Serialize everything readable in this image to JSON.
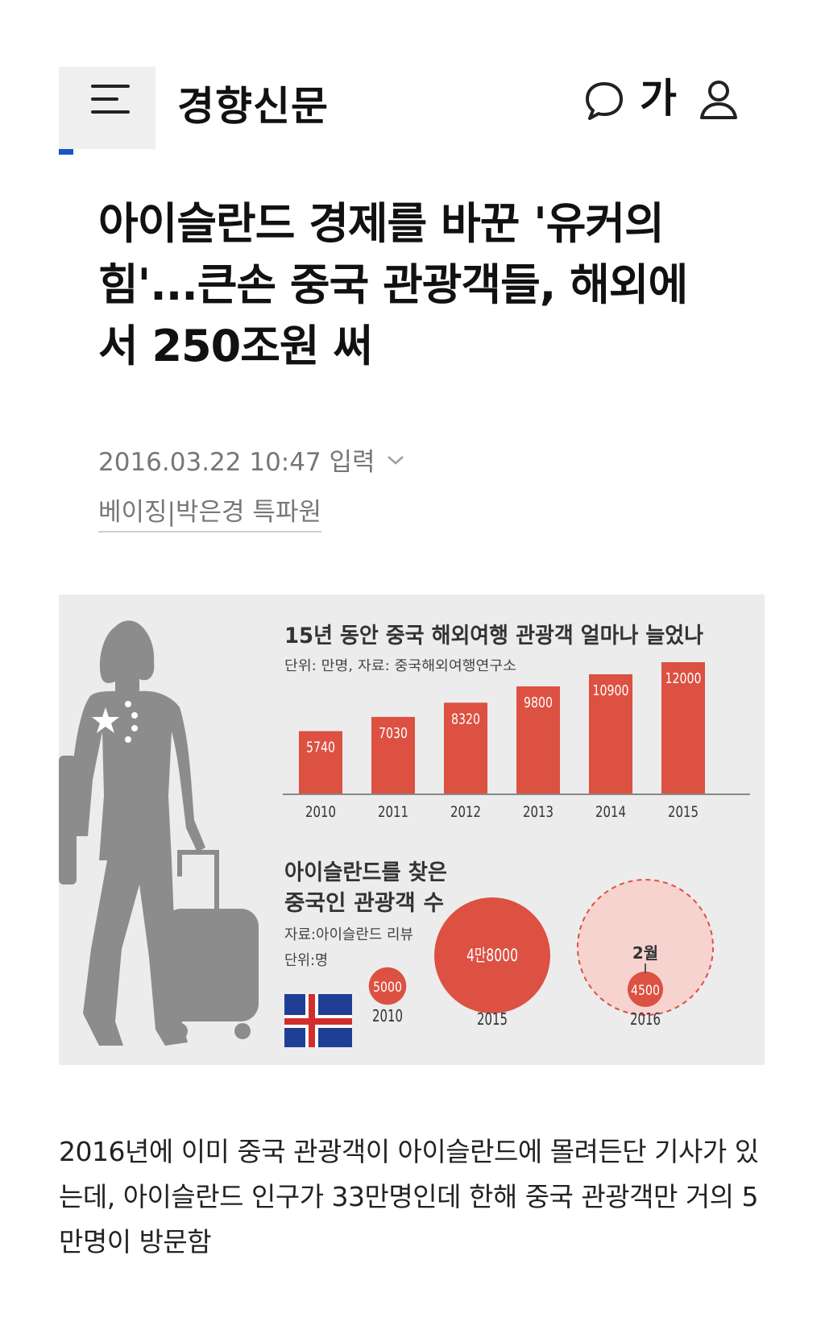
{
  "header": {
    "logo": "경향신문",
    "font_button": "가",
    "icons": [
      "menu-icon",
      "comment-icon",
      "user-icon"
    ]
  },
  "article": {
    "headline": "아이슬란드 경제를 바꾼 '유커의 힘'...큰손 중국 관광객들, 해외에서 250조원 써",
    "date": "2016.03.22 10:47 입력",
    "byline": "베이징|박은경 특파원"
  },
  "infographic": {
    "chart1_title": "15년 동안 중국 해외여행 관광객 얼마나 늘었나",
    "chart1_source": "단위: 만명, 자료: 중국해외여행연구소",
    "chart2_title_line1": "아이슬란드를 찾은",
    "chart2_title_line2": "중국인 관광객 수",
    "chart2_source": "자료:아이슬란드 리뷰",
    "chart2_unit": "단위:명",
    "bubble_2015_label": "4만8000",
    "bubble_2016_month": "2월"
  },
  "chart_data": [
    {
      "type": "bar",
      "title": "15년 동안 중국 해외여행 관광객 얼마나 늘었나",
      "subtitle": "단위: 만명, 자료: 중국해외여행연구소",
      "categories": [
        "2010",
        "2011",
        "2012",
        "2013",
        "2014",
        "2015"
      ],
      "values": [
        5740,
        7030,
        8320,
        9800,
        10900,
        12000
      ],
      "color": "#dc5142",
      "ylim": [
        0,
        12000
      ]
    },
    {
      "type": "bubble",
      "title": "아이슬란드를 찾은 중국인 관광객 수",
      "subtitle": "자료:아이슬란드 리뷰",
      "unit": "단위:명",
      "categories": [
        "2010",
        "2015",
        "2016"
      ],
      "values": [
        5000,
        48000,
        4500
      ],
      "labels": [
        "5000",
        "4만8000",
        "4500"
      ],
      "annotation": "2월",
      "color": "#dc5142"
    }
  ],
  "caption": "2016년에 이미 중국 관광객이 아이슬란드에 몰려든단 기사가 있는데, 아이슬란드 인구가 33만명인데 한해 중국 관광객만 거의 5만명이 방문함"
}
